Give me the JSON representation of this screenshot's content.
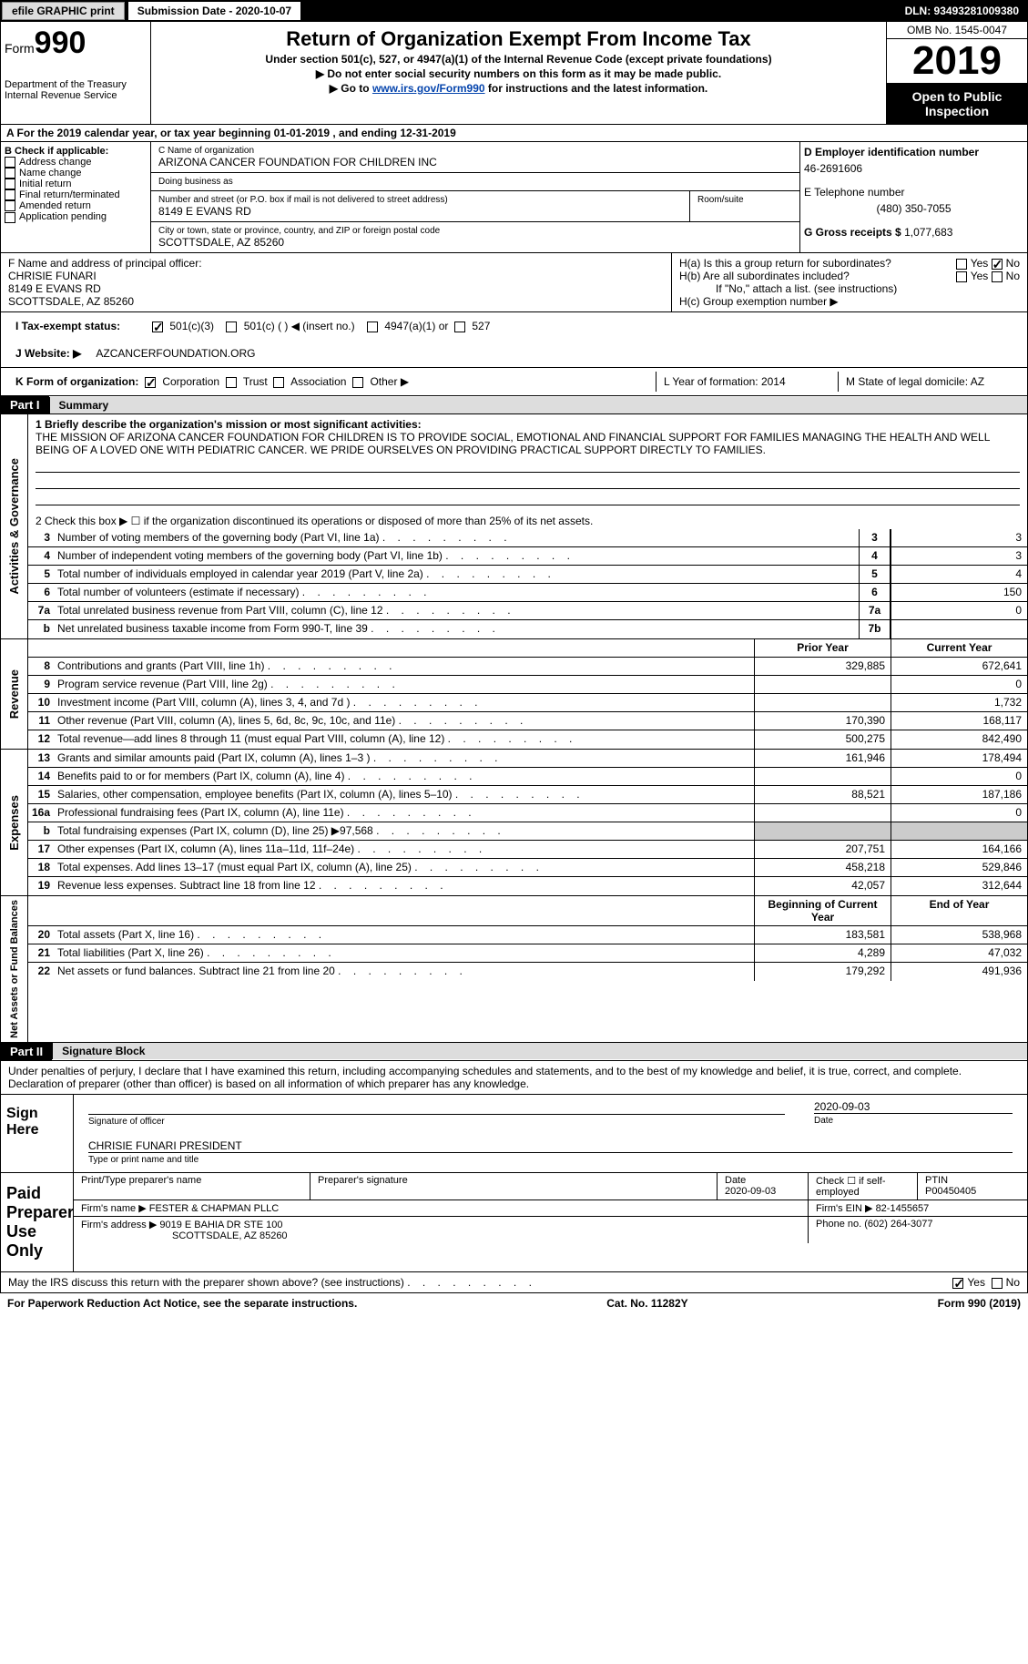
{
  "top": {
    "efile": "efile GRAPHIC print",
    "submission": "Submission Date - 2020-10-07",
    "dln": "DLN: 93493281009380"
  },
  "header": {
    "form_label": "Form",
    "form_num": "990",
    "dept": "Department of the Treasury",
    "irs": "Internal Revenue Service",
    "title": "Return of Organization Exempt From Income Tax",
    "sub1": "Under section 501(c), 527, or 4947(a)(1) of the Internal Revenue Code (except private foundations)",
    "sub2": "▶ Do not enter social security numbers on this form as it may be made public.",
    "sub3_pre": "▶ Go to ",
    "sub3_link": "www.irs.gov/Form990",
    "sub3_post": " for instructions and the latest information.",
    "omb": "OMB No. 1545-0047",
    "year": "2019",
    "open": "Open to Public Inspection"
  },
  "period": "A For the 2019 calendar year, or tax year beginning 01-01-2019   , and ending 12-31-2019",
  "b": {
    "label": "B Check if applicable:",
    "opts": [
      "Address change",
      "Name change",
      "Initial return",
      "Final return/terminated",
      "Amended return",
      "Application pending"
    ]
  },
  "c": {
    "name_label": "C Name of organization",
    "name": "ARIZONA CANCER FOUNDATION FOR CHILDREN INC",
    "dba_label": "Doing business as",
    "dba": "",
    "addr_label": "Number and street (or P.O. box if mail is not delivered to street address)",
    "room_label": "Room/suite",
    "addr": "8149 E EVANS RD",
    "city_label": "City or town, state or province, country, and ZIP or foreign postal code",
    "city": "SCOTTSDALE, AZ  85260"
  },
  "d": {
    "ein_label": "D Employer identification number",
    "ein": "46-2691606",
    "tel_label": "E Telephone number",
    "tel": "(480) 350-7055",
    "gross_label": "G Gross receipts $",
    "gross": "1,077,683"
  },
  "f": {
    "label": "F  Name and address of principal officer:",
    "name": "CHRISIE FUNARI",
    "addr1": "8149 E EVANS RD",
    "addr2": "SCOTTSDALE, AZ  85260"
  },
  "h": {
    "a": "H(a)  Is this a group return for subordinates?",
    "b": "H(b)  Are all subordinates included?",
    "b_note": "If \"No,\" attach a list. (see instructions)",
    "c": "H(c)  Group exemption number ▶"
  },
  "i": {
    "label": "I    Tax-exempt status:",
    "opts": [
      "501(c)(3)",
      "501(c) (  ) ◀ (insert no.)",
      "4947(a)(1) or",
      "527"
    ]
  },
  "j": {
    "label": "J   Website: ▶",
    "val": "AZCANCERFOUNDATION.ORG"
  },
  "k": {
    "label": "K Form of organization:",
    "opts": [
      "Corporation",
      "Trust",
      "Association",
      "Other ▶"
    ]
  },
  "lm": {
    "l": "L Year of formation: 2014",
    "m": "M State of legal domicile: AZ"
  },
  "part1": {
    "tag": "Part I",
    "title": "Summary",
    "mission_label": "1  Briefly describe the organization's mission or most significant activities:",
    "mission": "THE MISSION OF ARIZONA CANCER FOUNDATION FOR CHILDREN IS TO PROVIDE SOCIAL, EMOTIONAL AND FINANCIAL SUPPORT FOR FAMILIES MANAGING THE HEALTH AND WELL BEING OF A LOVED ONE WITH PEDIATRIC CANCER. WE PRIDE OURSELVES ON PROVIDING PRACTICAL SUPPORT DIRECTLY TO FAMILIES.",
    "line2": "2   Check this box ▶ ☐  if the organization discontinued its operations or disposed of more than 25% of its net assets.",
    "gov_label": "Activities & Governance",
    "rev_label": "Revenue",
    "exp_label": "Expenses",
    "net_label": "Net Assets or Fund Balances",
    "rows_gov": [
      {
        "n": "3",
        "d": "Number of voting members of the governing body (Part VI, line 1a)",
        "ln": "3",
        "v": "3"
      },
      {
        "n": "4",
        "d": "Number of independent voting members of the governing body (Part VI, line 1b)",
        "ln": "4",
        "v": "3"
      },
      {
        "n": "5",
        "d": "Total number of individuals employed in calendar year 2019 (Part V, line 2a)",
        "ln": "5",
        "v": "4"
      },
      {
        "n": "6",
        "d": "Total number of volunteers (estimate if necessary)",
        "ln": "6",
        "v": "150"
      },
      {
        "n": "7a",
        "d": "Total unrelated business revenue from Part VIII, column (C), line 12",
        "ln": "7a",
        "v": "0"
      },
      {
        "n": "b",
        "d": "Net unrelated business taxable income from Form 990-T, line 39",
        "ln": "7b",
        "v": ""
      }
    ],
    "hdr_prior": "Prior Year",
    "hdr_curr": "Current Year",
    "rows_rev": [
      {
        "n": "8",
        "d": "Contributions and grants (Part VIII, line 1h)",
        "p": "329,885",
        "c": "672,641"
      },
      {
        "n": "9",
        "d": "Program service revenue (Part VIII, line 2g)",
        "p": "",
        "c": "0"
      },
      {
        "n": "10",
        "d": "Investment income (Part VIII, column (A), lines 3, 4, and 7d )",
        "p": "",
        "c": "1,732"
      },
      {
        "n": "11",
        "d": "Other revenue (Part VIII, column (A), lines 5, 6d, 8c, 9c, 10c, and 11e)",
        "p": "170,390",
        "c": "168,117"
      },
      {
        "n": "12",
        "d": "Total revenue—add lines 8 through 11 (must equal Part VIII, column (A), line 12)",
        "p": "500,275",
        "c": "842,490"
      }
    ],
    "rows_exp": [
      {
        "n": "13",
        "d": "Grants and similar amounts paid (Part IX, column (A), lines 1–3 )",
        "p": "161,946",
        "c": "178,494"
      },
      {
        "n": "14",
        "d": "Benefits paid to or for members (Part IX, column (A), line 4)",
        "p": "",
        "c": "0"
      },
      {
        "n": "15",
        "d": "Salaries, other compensation, employee benefits (Part IX, column (A), lines 5–10)",
        "p": "88,521",
        "c": "187,186"
      },
      {
        "n": "16a",
        "d": "Professional fundraising fees (Part IX, column (A), line 11e)",
        "p": "",
        "c": "0"
      },
      {
        "n": "b",
        "d": "Total fundraising expenses (Part IX, column (D), line 25) ▶97,568",
        "p": "shade",
        "c": "shade"
      },
      {
        "n": "17",
        "d": "Other expenses (Part IX, column (A), lines 11a–11d, 11f–24e)",
        "p": "207,751",
        "c": "164,166"
      },
      {
        "n": "18",
        "d": "Total expenses. Add lines 13–17 (must equal Part IX, column (A), line 25)",
        "p": "458,218",
        "c": "529,846"
      },
      {
        "n": "19",
        "d": "Revenue less expenses. Subtract line 18 from line 12",
        "p": "42,057",
        "c": "312,644"
      }
    ],
    "hdr_beg": "Beginning of Current Year",
    "hdr_end": "End of Year",
    "rows_net": [
      {
        "n": "20",
        "d": "Total assets (Part X, line 16)",
        "p": "183,581",
        "c": "538,968"
      },
      {
        "n": "21",
        "d": "Total liabilities (Part X, line 26)",
        "p": "4,289",
        "c": "47,032"
      },
      {
        "n": "22",
        "d": "Net assets or fund balances. Subtract line 21 from line 20",
        "p": "179,292",
        "c": "491,936"
      }
    ]
  },
  "part2": {
    "tag": "Part II",
    "title": "Signature Block",
    "decl": "Under penalties of perjury, I declare that I have examined this return, including accompanying schedules and statements, and to the best of my knowledge and belief, it is true, correct, and complete. Declaration of preparer (other than officer) is based on all information of which preparer has any knowledge."
  },
  "sign": {
    "label": "Sign Here",
    "sig_label": "Signature of officer",
    "date": "2020-09-03",
    "date_label": "Date",
    "name": "CHRISIE FUNARI  PRESIDENT",
    "name_label": "Type or print name and title"
  },
  "paid": {
    "label": "Paid Preparer Use Only",
    "h1": "Print/Type preparer's name",
    "h2": "Preparer's signature",
    "h3": "Date",
    "h3v": "2020-09-03",
    "h4": "Check ☐ if self-employed",
    "h5": "PTIN",
    "h5v": "P00450405",
    "firm_label": "Firm's name    ▶",
    "firm": "FESTER & CHAPMAN PLLC",
    "ein_label": "Firm's EIN ▶",
    "ein": "82-1455657",
    "addr_label": "Firm's address ▶",
    "addr1": "9019 E BAHIA DR STE 100",
    "addr2": "SCOTTSDALE, AZ  85260",
    "phone_label": "Phone no.",
    "phone": "(602) 264-3077"
  },
  "discuss": "May the IRS discuss this return with the preparer shown above? (see instructions)",
  "footer": {
    "l": "For Paperwork Reduction Act Notice, see the separate instructions.",
    "c": "Cat. No. 11282Y",
    "r": "Form 990 (2019)"
  }
}
